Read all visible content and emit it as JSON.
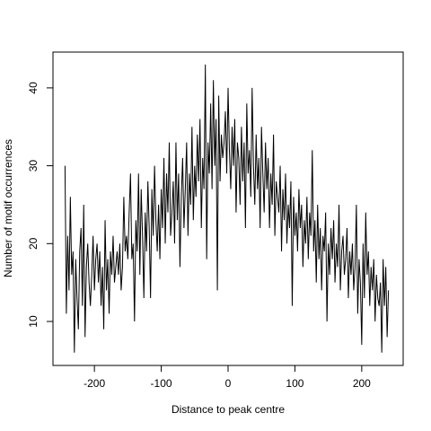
{
  "chart_data": {
    "type": "line",
    "xlabel": "Distance to peak centre",
    "ylabel": "Number of motif occurrences",
    "x": [
      -244,
      -242,
      -240,
      -238,
      -236,
      -234,
      -232,
      -230,
      -228,
      -226,
      -224,
      -222,
      -220,
      -218,
      -216,
      -214,
      -212,
      -210,
      -208,
      -206,
      -204,
      -202,
      -200,
      -198,
      -196,
      -194,
      -192,
      -190,
      -188,
      -186,
      -184,
      -182,
      -180,
      -178,
      -176,
      -174,
      -172,
      -170,
      -168,
      -166,
      -164,
      -162,
      -160,
      -158,
      -156,
      -154,
      -152,
      -150,
      -148,
      -146,
      -144,
      -142,
      -140,
      -138,
      -136,
      -134,
      -132,
      -130,
      -128,
      -126,
      -124,
      -122,
      -120,
      -118,
      -116,
      -114,
      -112,
      -110,
      -108,
      -106,
      -104,
      -102,
      -100,
      -98,
      -96,
      -94,
      -92,
      -90,
      -88,
      -86,
      -84,
      -82,
      -80,
      -78,
      -76,
      -74,
      -72,
      -70,
      -68,
      -66,
      -64,
      -62,
      -60,
      -58,
      -56,
      -54,
      -52,
      -50,
      -48,
      -46,
      -44,
      -42,
      -40,
      -38,
      -36,
      -34,
      -32,
      -30,
      -28,
      -26,
      -24,
      -22,
      -20,
      -18,
      -16,
      -14,
      -12,
      -10,
      -8,
      -6,
      -4,
      -2,
      0,
      2,
      4,
      6,
      8,
      10,
      12,
      14,
      16,
      18,
      20,
      22,
      24,
      26,
      28,
      30,
      32,
      34,
      36,
      38,
      40,
      42,
      44,
      46,
      48,
      50,
      52,
      54,
      56,
      58,
      60,
      62,
      64,
      66,
      68,
      70,
      72,
      74,
      76,
      78,
      80,
      82,
      84,
      86,
      88,
      90,
      92,
      94,
      96,
      98,
      100,
      102,
      104,
      106,
      108,
      110,
      112,
      114,
      116,
      118,
      120,
      122,
      124,
      126,
      128,
      130,
      132,
      134,
      136,
      138,
      140,
      142,
      144,
      146,
      148,
      150,
      152,
      154,
      156,
      158,
      160,
      162,
      164,
      166,
      168,
      170,
      172,
      174,
      176,
      178,
      180,
      182,
      184,
      186,
      188,
      190,
      192,
      194,
      196,
      198,
      200,
      202,
      204,
      206,
      208,
      210,
      212,
      214,
      216,
      218,
      220,
      222,
      224,
      226,
      228,
      230,
      232,
      234,
      236,
      238,
      240
    ],
    "series": [
      {
        "color": "#000000",
        "values": [
          30,
          11,
          21,
          14,
          26,
          16,
          19,
          6,
          18,
          13,
          9,
          19,
          22,
          12,
          25,
          8,
          17,
          20,
          15,
          12,
          16,
          21,
          14,
          18,
          20,
          15,
          19,
          12,
          17,
          9,
          23,
          14,
          18,
          11,
          19,
          16,
          21,
          15,
          17,
          19,
          16,
          20,
          14,
          17,
          26,
          19,
          21,
          18,
          24,
          29,
          18,
          20,
          10,
          23,
          19,
          29,
          16,
          27,
          21,
          13,
          24,
          19,
          28,
          22,
          13,
          27,
          21,
          30,
          23,
          19,
          25,
          18,
          27,
          22,
          31,
          20,
          29,
          24,
          33,
          21,
          24,
          28,
          20,
          33,
          23,
          29,
          17,
          26,
          31,
          22,
          27,
          33,
          21,
          29,
          25,
          35,
          23,
          30,
          26,
          34,
          28,
          36,
          22,
          31,
          27,
          43,
          18,
          33,
          29,
          38,
          27,
          41,
          30,
          36,
          14,
          39,
          28,
          34,
          31,
          33,
          37,
          29,
          40,
          32,
          27,
          35,
          30,
          36,
          24,
          33,
          31,
          25,
          35,
          28,
          33,
          22,
          38,
          29,
          32,
          26,
          40,
          30,
          25,
          34,
          27,
          31,
          22,
          35,
          29,
          24,
          33,
          27,
          31,
          22,
          29,
          25,
          34,
          21,
          28,
          26,
          24,
          30,
          19,
          27,
          23,
          29,
          20,
          25,
          22,
          28,
          12,
          26,
          21,
          24,
          19,
          27,
          22,
          25,
          17,
          23,
          20,
          26,
          18,
          24,
          21,
          32,
          19,
          23,
          15,
          25,
          18,
          22,
          14,
          21,
          19,
          24,
          10,
          20,
          16,
          22,
          18,
          23,
          15,
          20,
          17,
          25,
          14,
          19,
          21,
          16,
          18,
          22,
          13,
          19,
          16,
          20,
          14,
          17,
          25,
          11,
          18,
          15,
          7,
          20,
          13,
          24,
          16,
          19,
          12,
          17,
          14,
          18,
          10,
          16,
          13,
          12,
          15,
          6,
          18,
          12,
          17,
          8,
          14
        ]
      }
    ],
    "xlim": [
      -262,
      262
    ],
    "ylim": [
      4.35,
      44.6
    ],
    "xticks": [
      -200,
      -100,
      0,
      100,
      200
    ],
    "yticks": [
      10,
      20,
      30,
      40
    ]
  }
}
